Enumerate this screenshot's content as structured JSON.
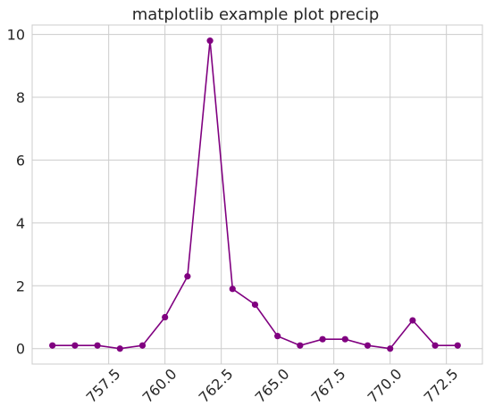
{
  "chart_data": {
    "type": "line",
    "title": "matplotlib example plot precip",
    "xlabel": "",
    "ylabel": "",
    "x": [
      755,
      756,
      757,
      758,
      759,
      760,
      761,
      762,
      763,
      764,
      765,
      766,
      767,
      768,
      769,
      770,
      771,
      772,
      773
    ],
    "series": [
      {
        "values": [
          0.1,
          0.1,
          0.1,
          0.0,
          0.1,
          1.0,
          2.3,
          9.8,
          1.9,
          1.4,
          0.4,
          0.1,
          0.3,
          0.3,
          0.1,
          0.0,
          0.9,
          0.1,
          0.1
        ]
      }
    ],
    "xlim": [
      754.1,
      774.1
    ],
    "ylim": [
      -0.49,
      10.3
    ],
    "xticks": [
      757.5,
      760.0,
      762.5,
      765.0,
      767.5,
      770.0,
      772.5
    ],
    "xtick_labels": [
      "757.5",
      "760.0",
      "762.5",
      "765.0",
      "767.5",
      "770.0",
      "772.5"
    ],
    "yticks": [
      0,
      2,
      4,
      6,
      8,
      10
    ],
    "ytick_labels": [
      "0",
      "2",
      "4",
      "6",
      "8",
      "10"
    ],
    "grid": true,
    "marker": "circle",
    "colors": {
      "line": "#800080",
      "grid": "#cccccc",
      "axes_edge": "#cccccc",
      "text": "#262626",
      "background": "#ffffff"
    }
  }
}
